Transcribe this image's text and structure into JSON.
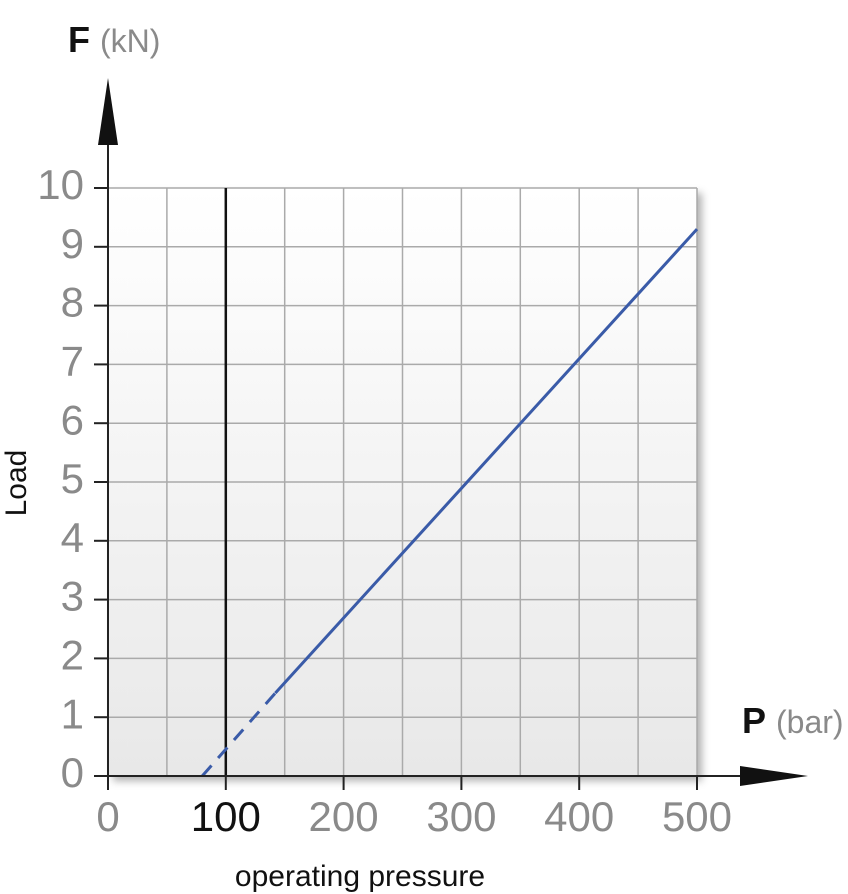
{
  "chart_data": {
    "type": "line",
    "y_symbol": "F",
    "y_unit": "(kN)",
    "x_symbol": "P",
    "x_unit": "(bar)",
    "y_label": "Load",
    "x_label": "operating pressure",
    "xlim": [
      0,
      500
    ],
    "ylim": [
      0,
      10
    ],
    "xticks": [
      0,
      100,
      200,
      300,
      400,
      500
    ],
    "yticks": [
      0,
      1,
      2,
      3,
      4,
      5,
      6,
      7,
      8,
      9,
      10
    ],
    "x_grid": [
      0,
      50,
      100,
      150,
      200,
      250,
      300,
      350,
      400,
      450,
      500
    ],
    "grid": true,
    "reference_line_x": 100,
    "series": [
      {
        "color": "#3a5ba8",
        "dash": true,
        "x": [
          80,
          142
        ],
        "values": [
          0,
          1.41
        ]
      },
      {
        "color": "#3a5ba8",
        "dash": false,
        "x": [
          142,
          500
        ],
        "values": [
          1.41,
          9.3
        ]
      }
    ]
  }
}
